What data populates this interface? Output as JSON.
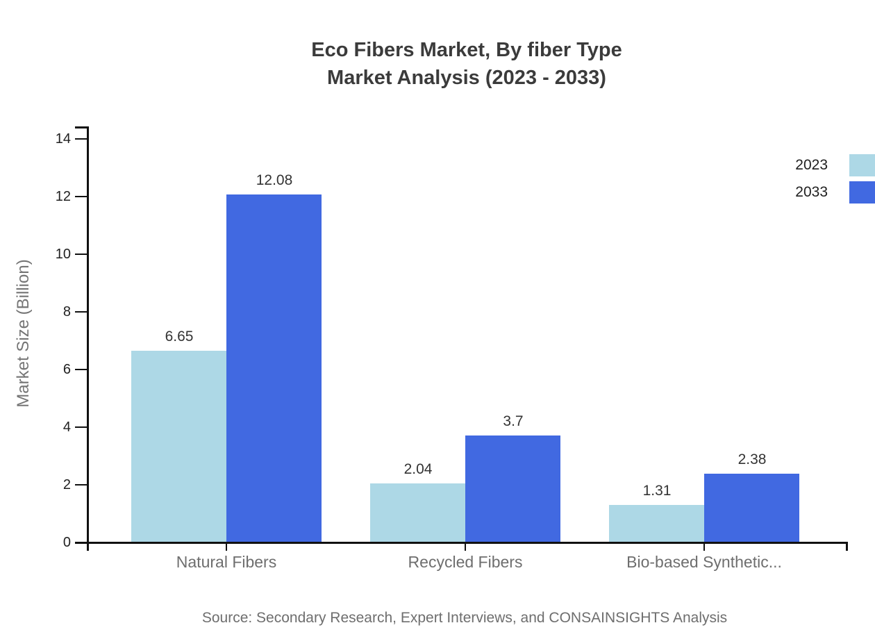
{
  "chart_data": {
    "type": "bar",
    "title_line1": "Eco Fibers Market, By fiber Type",
    "title_line2": "Market Analysis (2023 - 2033)",
    "categories": [
      "Natural Fibers",
      "Recycled Fibers",
      "Bio-based Synthetic..."
    ],
    "series": [
      {
        "name": "2023",
        "color": "#ADD8E6",
        "values": [
          6.65,
          2.04,
          1.31
        ]
      },
      {
        "name": "2033",
        "color": "#4169E1",
        "values": [
          12.08,
          3.7,
          2.38
        ]
      }
    ],
    "value_labels": [
      "6.65",
      "12.08",
      "2.04",
      "3.7",
      "1.31",
      "2.38"
    ],
    "xlabel": "",
    "ylabel": "Market Size (Billion)",
    "ylim": [
      0,
      14
    ],
    "yticks": [
      0,
      2,
      4,
      6,
      8,
      10,
      12,
      14
    ],
    "grid": false,
    "legend_position": "top-right",
    "source": "Source: Secondary Research, Expert Interviews, and CONSAINSIGHTS Analysis"
  }
}
